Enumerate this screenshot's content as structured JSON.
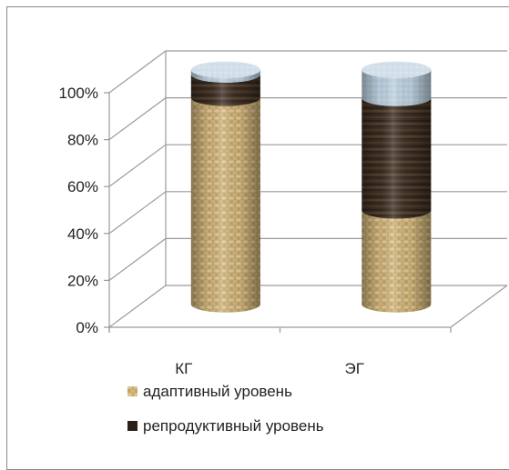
{
  "chart_data": {
    "type": "bar",
    "stacked": true,
    "style": "3d-cylinder",
    "categories": [
      "КГ",
      "ЭГ"
    ],
    "series": [
      {
        "name": "адаптивный уровень",
        "values": [
          88,
          40
        ],
        "color": "#d8c08c",
        "pattern": "woven-burlap"
      },
      {
        "name": "репродуктивный уровень",
        "values": [
          10,
          48
        ],
        "color": "#3e2f22",
        "pattern": "dark-wood"
      },
      {
        "name": "",
        "values": [
          2,
          12
        ],
        "color": "#b9cedd",
        "pattern": "light-blue"
      }
    ],
    "y_ticks": [
      "0%",
      "20%",
      "40%",
      "60%",
      "80%",
      "100%"
    ],
    "ylim": [
      0,
      100
    ],
    "grid": true,
    "legend_position": "bottom-left"
  }
}
